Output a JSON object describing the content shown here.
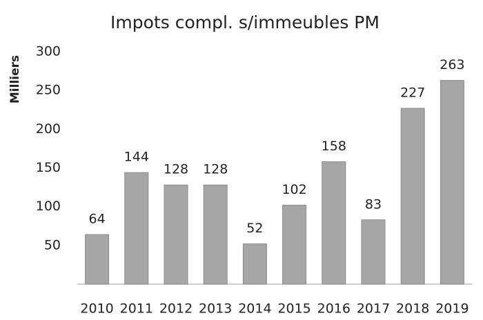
{
  "chart_data": {
    "type": "bar",
    "title": "Impots compl. s/immeubles PM",
    "y_label": "Milliers",
    "categories": [
      "2010",
      "2011",
      "2012",
      "2013",
      "2014",
      "2015",
      "2016",
      "2017",
      "2018",
      "2019"
    ],
    "values": [
      64,
      144,
      128,
      128,
      52,
      102,
      158,
      83,
      227,
      263
    ],
    "color": "#a6a6a6",
    "ylim": [
      0,
      300
    ],
    "yticks": [
      50,
      100,
      150,
      200,
      250,
      300
    ],
    "grid": false
  }
}
